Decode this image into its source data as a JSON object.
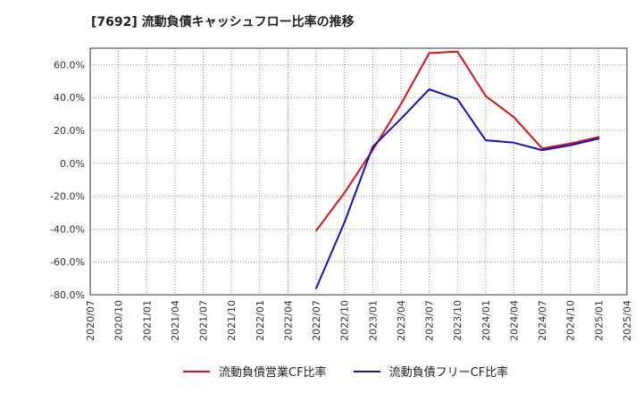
{
  "header": {
    "title": "[7692]  流動負債キャッシュフロー比率の推移"
  },
  "chart_data": {
    "type": "line",
    "title": "[7692]  流動負債キャッシュフロー比率の推移",
    "xlabel": "",
    "ylabel": "",
    "xlim": [
      "2020/07",
      "2025/04"
    ],
    "ylim": [
      -80,
      70
    ],
    "grid": true,
    "legend_position": "bottom",
    "y_ticks": [
      {
        "value": 60,
        "label": "60.0%"
      },
      {
        "value": 40,
        "label": "40.0%"
      },
      {
        "value": 20,
        "label": "20.0%"
      },
      {
        "value": 0,
        "label": "0.0%"
      },
      {
        "value": -20,
        "label": "-20.0%"
      },
      {
        "value": -40,
        "label": "-40.0%"
      },
      {
        "value": -60,
        "label": "-60.0%"
      },
      {
        "value": -80,
        "label": "-80.0%"
      }
    ],
    "x_ticks": [
      "2020/07",
      "2020/10",
      "2021/01",
      "2021/04",
      "2021/07",
      "2021/10",
      "2022/01",
      "2022/04",
      "2022/07",
      "2022/10",
      "2023/01",
      "2023/04",
      "2023/07",
      "2023/10",
      "2024/01",
      "2024/04",
      "2024/07",
      "2024/10",
      "2025/01",
      "2025/04"
    ],
    "series": [
      {
        "name": "流動負債営業CF比率",
        "color": "#dd1111",
        "points": [
          {
            "x": "2022/07",
            "y": -41
          },
          {
            "x": "2022/10",
            "y": -18
          },
          {
            "x": "2023/01",
            "y": 8
          },
          {
            "x": "2023/04",
            "y": 36
          },
          {
            "x": "2023/07",
            "y": 67
          },
          {
            "x": "2023/10",
            "y": 68
          },
          {
            "x": "2024/01",
            "y": 41
          },
          {
            "x": "2024/04",
            "y": 28
          },
          {
            "x": "2024/07",
            "y": 9
          },
          {
            "x": "2024/10",
            "y": 12
          },
          {
            "x": "2025/01",
            "y": 16
          }
        ]
      },
      {
        "name": "流動負債フリーCF比率",
        "color": "#1111cc",
        "points": [
          {
            "x": "2022/07",
            "y": -76
          },
          {
            "x": "2022/10",
            "y": -36
          },
          {
            "x": "2023/01",
            "y": 10
          },
          {
            "x": "2023/04",
            "y": 27
          },
          {
            "x": "2023/07",
            "y": 45
          },
          {
            "x": "2023/10",
            "y": 39
          },
          {
            "x": "2024/01",
            "y": 14
          },
          {
            "x": "2024/04",
            "y": 12.5
          },
          {
            "x": "2024/07",
            "y": 8
          },
          {
            "x": "2024/10",
            "y": 11
          },
          {
            "x": "2025/01",
            "y": 15
          }
        ]
      }
    ]
  },
  "legend": {
    "items": [
      {
        "label": "流動負債営業CF比率",
        "color": "#dd1111"
      },
      {
        "label": "流動負債フリーCF比率",
        "color": "#1111cc"
      }
    ]
  }
}
